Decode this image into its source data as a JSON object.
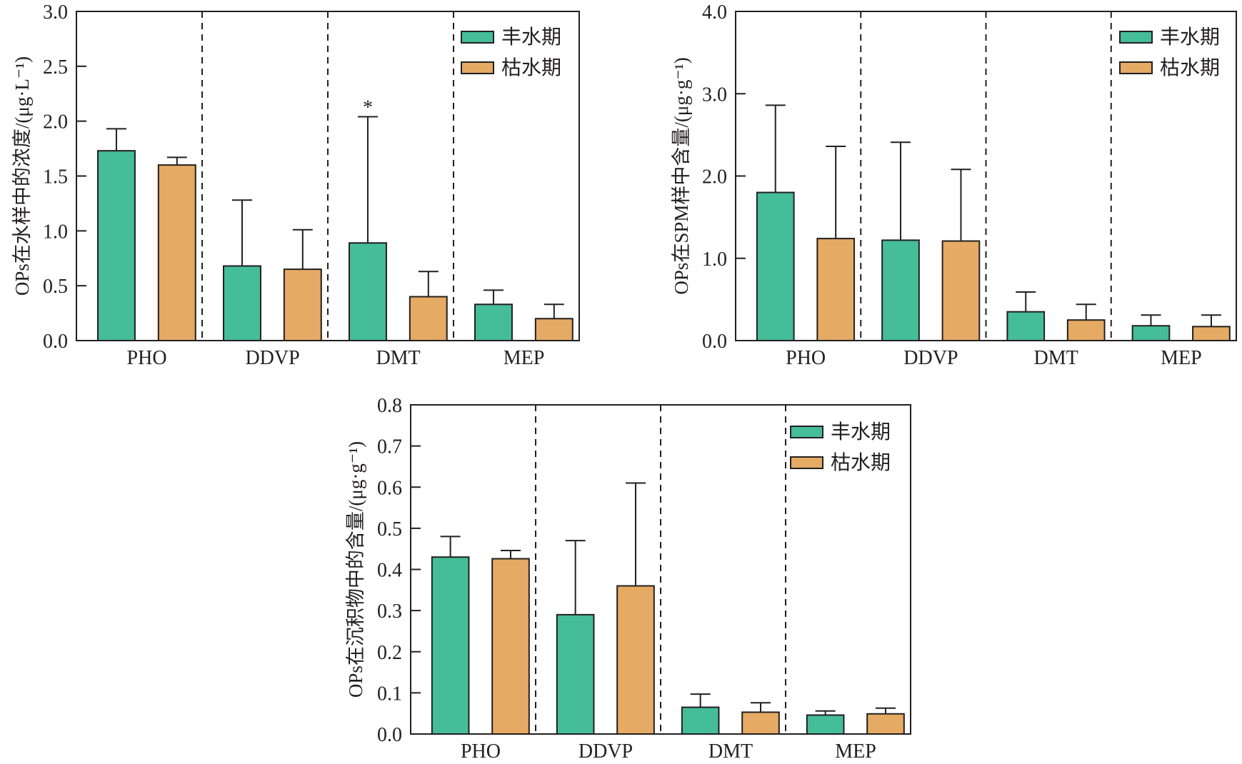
{
  "chart_data": [
    {
      "type": "bar",
      "id": "water",
      "title": "",
      "xlabel": "",
      "ylabel": "OPs在水样中的浓度/(μg·L⁻¹)",
      "ylim": [
        0,
        3.0
      ],
      "yticks": [
        "0.0",
        "0.5",
        "1.0",
        "1.5",
        "2.0",
        "2.5",
        "3.0"
      ],
      "ytick_values": [
        0,
        0.5,
        1.0,
        1.5,
        2.0,
        2.5,
        3.0
      ],
      "categories": [
        "PHO",
        "DDVP",
        "DMT",
        "MEP"
      ],
      "series": [
        {
          "name": "丰水期",
          "values": [
            1.73,
            0.68,
            0.89,
            0.33
          ],
          "error_upper": [
            1.93,
            1.28,
            2.04,
            0.46
          ]
        },
        {
          "name": "枯水期",
          "values": [
            1.6,
            0.65,
            0.4,
            0.2
          ],
          "error_upper": [
            1.67,
            1.01,
            0.63,
            0.33
          ]
        }
      ],
      "annotations": [
        {
          "category": "DMT",
          "series": "丰水期",
          "text": "*"
        }
      ],
      "legend_position": "top-right",
      "group_separators": "dashed",
      "grid": false
    },
    {
      "type": "bar",
      "id": "spm",
      "title": "",
      "xlabel": "",
      "ylabel": "OPs在SPM样中含量/(μg·g⁻¹)",
      "ylim": [
        0,
        4.0
      ],
      "yticks": [
        "0.0",
        "1.0",
        "2.0",
        "3.0",
        "4.0"
      ],
      "ytick_values": [
        0,
        1.0,
        2.0,
        3.0,
        4.0
      ],
      "categories": [
        "PHO",
        "DDVP",
        "DMT",
        "MEP"
      ],
      "series": [
        {
          "name": "丰水期",
          "values": [
            1.8,
            1.22,
            0.35,
            0.18
          ],
          "error_upper": [
            2.86,
            2.41,
            0.59,
            0.31
          ]
        },
        {
          "name": "枯水期",
          "values": [
            1.24,
            1.21,
            0.25,
            0.17
          ],
          "error_upper": [
            2.36,
            2.08,
            0.44,
            0.31
          ]
        }
      ],
      "annotations": [],
      "legend_position": "top-right",
      "group_separators": "dashed",
      "grid": false
    },
    {
      "type": "bar",
      "id": "sediment",
      "title": "",
      "xlabel": "",
      "ylabel": "OPs在沉积物中的含量/(μg·g⁻¹)",
      "ylim": [
        0,
        0.8
      ],
      "yticks": [
        "0.0",
        "0.1",
        "0.2",
        "0.3",
        "0.4",
        "0.5",
        "0.6",
        "0.7",
        "0.8"
      ],
      "ytick_values": [
        0,
        0.1,
        0.2,
        0.3,
        0.4,
        0.5,
        0.6,
        0.7,
        0.8
      ],
      "categories": [
        "PHO",
        "DDVP",
        "DMT",
        "MEP"
      ],
      "series": [
        {
          "name": "丰水期",
          "values": [
            0.43,
            0.29,
            0.065,
            0.046
          ],
          "error_upper": [
            0.48,
            0.47,
            0.097,
            0.056
          ]
        },
        {
          "name": "枯水期",
          "values": [
            0.426,
            0.36,
            0.053,
            0.049
          ],
          "error_upper": [
            0.446,
            0.61,
            0.076,
            0.063
          ]
        }
      ],
      "annotations": [],
      "legend_position": "top-right",
      "group_separators": "dashed",
      "grid": false
    }
  ],
  "colors": {
    "丰水期": "#45bd98",
    "枯水期": "#e5aa64",
    "axis": "#231f20"
  }
}
